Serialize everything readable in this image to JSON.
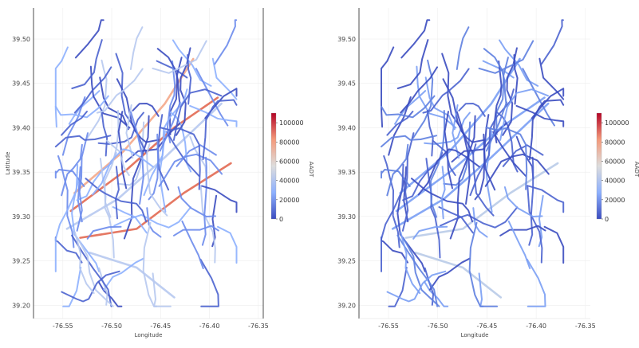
{
  "chart_data": [
    {
      "type": "map",
      "xlabel": "Longitude",
      "ylabel": "Latitude",
      "x_ticks": [
        -76.55,
        -76.5,
        -76.45,
        -76.4,
        -76.35
      ],
      "x_tick_labels": [
        "-76.55",
        "-76.50",
        "-76.45",
        "-76.40",
        "-76.35"
      ],
      "y_ticks": [
        39.2,
        39.25,
        39.3,
        39.35,
        39.4,
        39.45,
        39.5
      ],
      "y_tick_labels": [
        "39.20",
        "39.25",
        "39.30",
        "39.35",
        "39.40",
        "39.45",
        "39.50"
      ],
      "xlim": [
        -76.58,
        -76.345
      ],
      "ylim": [
        39.185,
        39.535
      ],
      "colorbar": {
        "label": "AADT",
        "range": [
          0,
          110000
        ],
        "ticks": [
          0,
          20000,
          40000,
          60000,
          80000,
          100000
        ],
        "tick_labels": [
          "0",
          "20000",
          "40000",
          "60000",
          "80000",
          "100000"
        ],
        "colormap": "coolwarm",
        "colors": [
          "#3b4cc0",
          "#8db0fe",
          "#dddddd",
          "#f49a7b",
          "#b40426"
        ]
      },
      "grid": true,
      "right_spine": true
    },
    {
      "type": "map",
      "xlabel": "Longitude",
      "ylabel": "",
      "x_ticks": [
        -76.55,
        -76.5,
        -76.45,
        -76.4,
        -76.35
      ],
      "x_tick_labels": [
        "-76.55",
        "-76.50",
        "-76.45",
        "-76.40",
        "-76.35"
      ],
      "y_ticks": [
        39.2,
        39.25,
        39.3,
        39.35,
        39.4,
        39.45,
        39.5
      ],
      "y_tick_labels": [
        "39.20",
        "39.25",
        "39.30",
        "39.35",
        "39.40",
        "39.45",
        "39.50"
      ],
      "xlim": [
        -76.58,
        -76.345
      ],
      "ylim": [
        39.185,
        39.535
      ],
      "colorbar": {
        "label": "AADT",
        "range": [
          0,
          110000
        ],
        "ticks": [
          0,
          20000,
          40000,
          60000,
          80000,
          100000
        ],
        "tick_labels": [
          "0",
          "20000",
          "40000",
          "60000",
          "80000",
          "100000"
        ],
        "colormap": "coolwarm",
        "colors": [
          "#3b4cc0",
          "#8db0fe",
          "#dddddd",
          "#f49a7b",
          "#b40426"
        ]
      },
      "grid": true,
      "right_spine": false
    }
  ]
}
